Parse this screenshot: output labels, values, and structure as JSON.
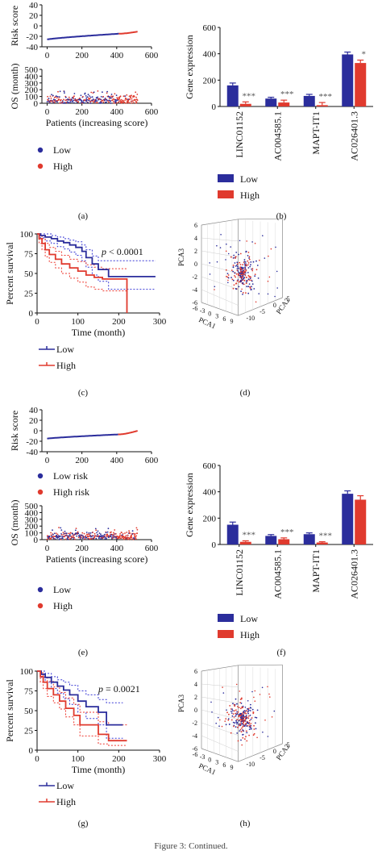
{
  "caption": "Figure 3: Continued.",
  "colors": {
    "low": "#2b2d9c",
    "high": "#e03a2e",
    "axis": "#111111",
    "ci_low": "#3b3bd6",
    "ci_high": "#ee3a30"
  },
  "panels": [
    {
      "id": "a",
      "label": "(a)"
    },
    {
      "id": "b",
      "label": "(b)"
    },
    {
      "id": "c",
      "label": "(c)"
    },
    {
      "id": "d",
      "label": "(d)"
    },
    {
      "id": "e",
      "label": "(e)"
    },
    {
      "id": "f",
      "label": "(f)"
    },
    {
      "id": "g",
      "label": "(g)"
    },
    {
      "id": "h",
      "label": "(h)"
    }
  ],
  "chart_data": [
    {
      "id": "a_risk",
      "type": "line",
      "ylabel": "Risk score",
      "xlim": [
        -30,
        600
      ],
      "ylim": [
        -40,
        40
      ],
      "xticks": [
        0,
        200,
        400,
        600
      ],
      "yticks": [
        -40,
        -20,
        0,
        20,
        40
      ],
      "n_patients": 520,
      "cut_index": 415,
      "series": [
        {
          "name": "Low",
          "start": -26,
          "cut": -15,
          "end": -11
        },
        {
          "name": "High",
          "start": -15,
          "end": -11
        }
      ]
    },
    {
      "id": "a_os",
      "type": "scatter",
      "ylabel": "OS (month)",
      "xlabel": "Patients (increasing score)",
      "xlim": [
        -30,
        600
      ],
      "ylim": [
        0,
        500
      ],
      "xticks": [
        0,
        200,
        400,
        600
      ],
      "yticks": [
        0,
        100,
        200,
        300,
        400,
        500
      ],
      "n_patients": 520,
      "y_range": [
        0,
        180
      ],
      "legend": [
        "Low",
        "High"
      ]
    },
    {
      "id": "b",
      "type": "bar",
      "ylabel": "Gene expression",
      "ylim": [
        0,
        600
      ],
      "yticks": [
        0,
        200,
        400,
        600
      ],
      "categories": [
        "LINC01152",
        "AC004585.1",
        "MAPT-IT1",
        "AC026401.3"
      ],
      "series": [
        {
          "name": "Low",
          "values": [
            160,
            60,
            80,
            395
          ],
          "errors": [
            18,
            10,
            12,
            18
          ]
        },
        {
          "name": "High",
          "values": [
            20,
            30,
            10,
            330
          ],
          "errors": [
            15,
            18,
            20,
            22
          ]
        }
      ],
      "significance": [
        "***",
        "***",
        "***",
        "*"
      ]
    },
    {
      "id": "c",
      "type": "line",
      "ylabel": "Percent survival",
      "xlabel": "Time (month)",
      "xlim": [
        0,
        300
      ],
      "ylim": [
        0,
        100
      ],
      "xticks": [
        0,
        100,
        200,
        300
      ],
      "yticks": [
        0,
        25,
        50,
        75,
        100
      ],
      "annotation_p": "p",
      "annotation_value": "< 0.0001",
      "series": [
        {
          "name": "Low",
          "x": [
            0,
            8,
            20,
            35,
            50,
            65,
            80,
            95,
            110,
            120,
            135,
            150,
            175,
            290
          ],
          "y": [
            100,
            98,
            96,
            94,
            91,
            89,
            86,
            83,
            78,
            70,
            62,
            55,
            46,
            46
          ],
          "ci_upper": [
            100,
            100,
            100,
            98,
            96,
            94,
            92,
            90,
            86,
            80,
            72,
            66,
            66,
            66
          ],
          "ci_lower": [
            100,
            95,
            91,
            88,
            84,
            81,
            77,
            73,
            66,
            58,
            48,
            40,
            30,
            30
          ]
        },
        {
          "name": "High",
          "x": [
            0,
            5,
            12,
            20,
            30,
            45,
            60,
            80,
            100,
            120,
            140,
            160,
            220,
            220
          ],
          "y": [
            100,
            94,
            88,
            80,
            74,
            68,
            62,
            57,
            53,
            48,
            45,
            43,
            43,
            0
          ],
          "ci_upper": [
            100,
            98,
            94,
            88,
            83,
            78,
            73,
            68,
            65,
            61,
            58,
            56,
            56,
            56
          ],
          "ci_lower": [
            100,
            88,
            80,
            71,
            64,
            57,
            50,
            44,
            39,
            33,
            30,
            28,
            25,
            25
          ]
        }
      ],
      "legend": [
        "Low",
        "High"
      ]
    },
    {
      "id": "d",
      "type": "scatter",
      "subtype": "3d",
      "axes": [
        "PCA1",
        "PCA2",
        "PCA3"
      ],
      "z_ticks": [
        -6,
        -4,
        -2,
        0,
        2,
        4,
        6
      ],
      "x_ticks": [
        -6,
        -3,
        0,
        3,
        6,
        9
      ],
      "y_ticks": [
        -10,
        -5,
        0,
        5
      ],
      "series": [
        {
          "name": "Low"
        },
        {
          "name": "High"
        }
      ]
    },
    {
      "id": "e_risk",
      "type": "line",
      "ylabel": "Risk score",
      "xlim": [
        -30,
        600
      ],
      "ylim": [
        -40,
        40
      ],
      "xticks": [
        0,
        200,
        400,
        600
      ],
      "yticks": [
        -40,
        -20,
        0,
        20,
        40
      ],
      "n_patients": 520,
      "cut_index": 410,
      "series": [
        {
          "name": "Low risk",
          "start": -15,
          "cut": -7,
          "end": 0
        },
        {
          "name": "High risk"
        }
      ],
      "legend": [
        "Low risk",
        "High risk"
      ]
    },
    {
      "id": "e_os",
      "type": "scatter",
      "ylabel": "OS (month)",
      "xlabel": "Patients (increasing score)",
      "xlim": [
        -30,
        600
      ],
      "ylim": [
        0,
        500
      ],
      "xticks": [
        0,
        200,
        400,
        600
      ],
      "yticks": [
        0,
        100,
        200,
        300,
        400,
        500
      ],
      "n_patients": 520,
      "y_range": [
        0,
        180
      ],
      "legend": [
        "Low",
        "High"
      ]
    },
    {
      "id": "f",
      "type": "bar",
      "ylabel": "Gene expression",
      "ylim": [
        0,
        600
      ],
      "yticks": [
        0,
        200,
        400,
        600
      ],
      "categories": [
        "LINC01152",
        "AC004585.1",
        "MAPT-IT1",
        "AC026401.3"
      ],
      "series": [
        {
          "name": "Low",
          "values": [
            150,
            65,
            78,
            385
          ],
          "errors": [
            20,
            10,
            10,
            22
          ]
        },
        {
          "name": "High",
          "values": [
            20,
            40,
            15,
            340
          ],
          "errors": [
            8,
            10,
            6,
            30
          ]
        }
      ],
      "significance": [
        "***",
        "***",
        "***",
        ""
      ]
    },
    {
      "id": "g",
      "type": "line",
      "ylabel": "Percent survival",
      "xlabel": "Time (month)",
      "xlim": [
        0,
        300
      ],
      "ylim": [
        0,
        100
      ],
      "xticks": [
        0,
        100,
        200,
        300
      ],
      "yticks": [
        0,
        25,
        50,
        75,
        100
      ],
      "annotation_p": "p",
      "annotation_value": "= 0.0021",
      "series": [
        {
          "name": "Low",
          "x": [
            0,
            10,
            20,
            35,
            50,
            65,
            80,
            100,
            120,
            150,
            170,
            210
          ],
          "y": [
            100,
            96,
            92,
            86,
            81,
            76,
            70,
            62,
            55,
            48,
            32,
            32
          ],
          "ci_upper": [
            100,
            100,
            97,
            93,
            89,
            86,
            82,
            75,
            70,
            64,
            60,
            60
          ],
          "ci_lower": [
            100,
            92,
            86,
            78,
            72,
            65,
            58,
            48,
            40,
            32,
            15,
            15
          ]
        },
        {
          "name": "High",
          "x": [
            0,
            8,
            15,
            25,
            40,
            55,
            70,
            90,
            105,
            150,
            175,
            220
          ],
          "y": [
            100,
            93,
            86,
            78,
            70,
            62,
            53,
            44,
            32,
            20,
            12,
            12
          ],
          "ci_upper": [
            100,
            98,
            93,
            87,
            80,
            73,
            66,
            58,
            48,
            36,
            32,
            32
          ],
          "ci_lower": [
            100,
            86,
            78,
            68,
            60,
            52,
            42,
            32,
            18,
            8,
            6,
            6
          ]
        }
      ],
      "legend": [
        "Low",
        "High"
      ]
    },
    {
      "id": "h",
      "type": "scatter",
      "subtype": "3d",
      "axes": [
        "PCA1",
        "PCA2",
        "PCA3"
      ],
      "z_ticks": [
        -6,
        -4,
        -2,
        0,
        2,
        4,
        6
      ],
      "x_ticks": [
        -6,
        -3,
        0,
        3,
        6,
        9
      ],
      "y_ticks": [
        -10,
        -5,
        0,
        5
      ],
      "series": [
        {
          "name": "Low"
        },
        {
          "name": "High"
        }
      ]
    }
  ]
}
